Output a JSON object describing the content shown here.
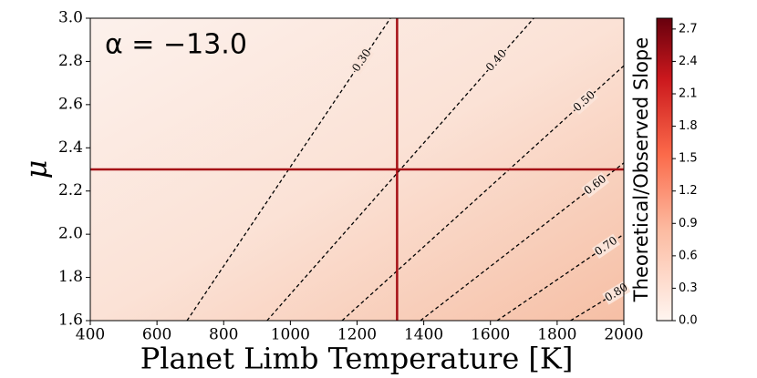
{
  "chart_data": {
    "type": "contour",
    "xlabel": "Planet Limb Temperature [K]",
    "ylabel": "μ",
    "annotation": "α = −13.0",
    "xlim": [
      400,
      2000
    ],
    "xticks": [
      400,
      600,
      800,
      1000,
      1200,
      1400,
      1600,
      1800,
      2000
    ],
    "ylim": [
      1.6,
      3.0
    ],
    "yticks": [
      1.6,
      1.8,
      {
        "value": 2.0,
        "label": "2.0"
      },
      2.2,
      2.4,
      2.6,
      2.8,
      {
        "value": 3.0,
        "label": "3.0"
      }
    ],
    "contour_color": "#000000",
    "contours": [
      {
        "label": "0.30",
        "x": [
          690,
          1300
        ],
        "y": [
          1.6,
          3.0
        ]
      },
      {
        "label": "0.40",
        "x": [
          930,
          1730
        ],
        "y": [
          1.6,
          3.0
        ]
      },
      {
        "label": "0.50",
        "x": [
          1155,
          2000
        ],
        "y": [
          1.6,
          2.78
        ]
      },
      {
        "label": "0.60",
        "x": [
          1390,
          2000
        ],
        "y": [
          1.6,
          2.33
        ]
      },
      {
        "label": "0.70",
        "x": [
          1620,
          2000
        ],
        "y": [
          1.6,
          2.0
        ]
      },
      {
        "label": "0.80",
        "x": [
          1840,
          2000
        ],
        "y": [
          1.6,
          1.75
        ]
      }
    ],
    "vline": 1320,
    "hline": 2.3,
    "line_color": "#a50f15",
    "colorbar": {
      "label": "Theoretical/Observed Slope",
      "lim": [
        0,
        2.8
      ],
      "ticks": [
        {
          "value": 0,
          "label": "0.0"
        },
        0.3,
        0.6,
        0.9,
        1.2,
        1.5,
        1.8,
        2.1,
        2.4,
        2.7
      ]
    }
  }
}
